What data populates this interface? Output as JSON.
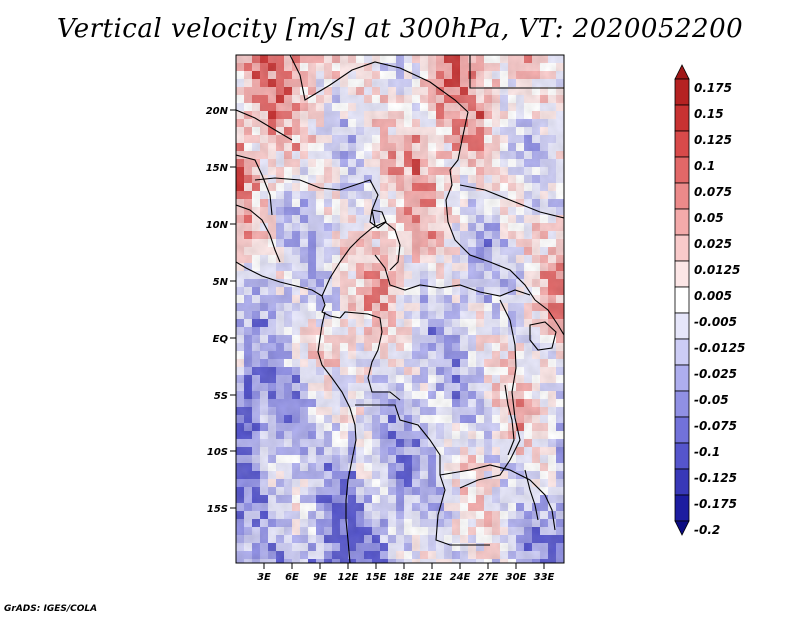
{
  "title": "Vertical velocity [m/s] at 300hPa, VT: 2020052200",
  "credit": "GrADS: IGES/COLA",
  "map": {
    "lon_labels": [
      "3E",
      "6E",
      "9E",
      "12E",
      "15E",
      "18E",
      "21E",
      "24E",
      "27E",
      "30E",
      "33E"
    ],
    "lat_labels": [
      "20N",
      "15N",
      "10N",
      "5N",
      "EQ",
      "5S",
      "10S",
      "15S"
    ]
  },
  "colorbar": {
    "levels": [
      "0.175",
      "0.15",
      "0.125",
      "0.1",
      "0.075",
      "0.05",
      "0.025",
      "0.0125",
      "0.005",
      "-0.005",
      "-0.0125",
      "-0.025",
      "-0.05",
      "-0.075",
      "-0.1",
      "-0.125",
      "-0.175",
      "-0.2"
    ],
    "colors": [
      "#a01818",
      "#b52222",
      "#c83232",
      "#d84a4a",
      "#e26868",
      "#ec8a8a",
      "#f3aaaa",
      "#f8caca",
      "#fce6e6",
      "#ffffff",
      "#e6e6fa",
      "#cdcdf5",
      "#aeaeee",
      "#9090e4",
      "#7272da",
      "#5555cc",
      "#3838b8",
      "#1c1ca0",
      "#0c0c82"
    ]
  }
}
